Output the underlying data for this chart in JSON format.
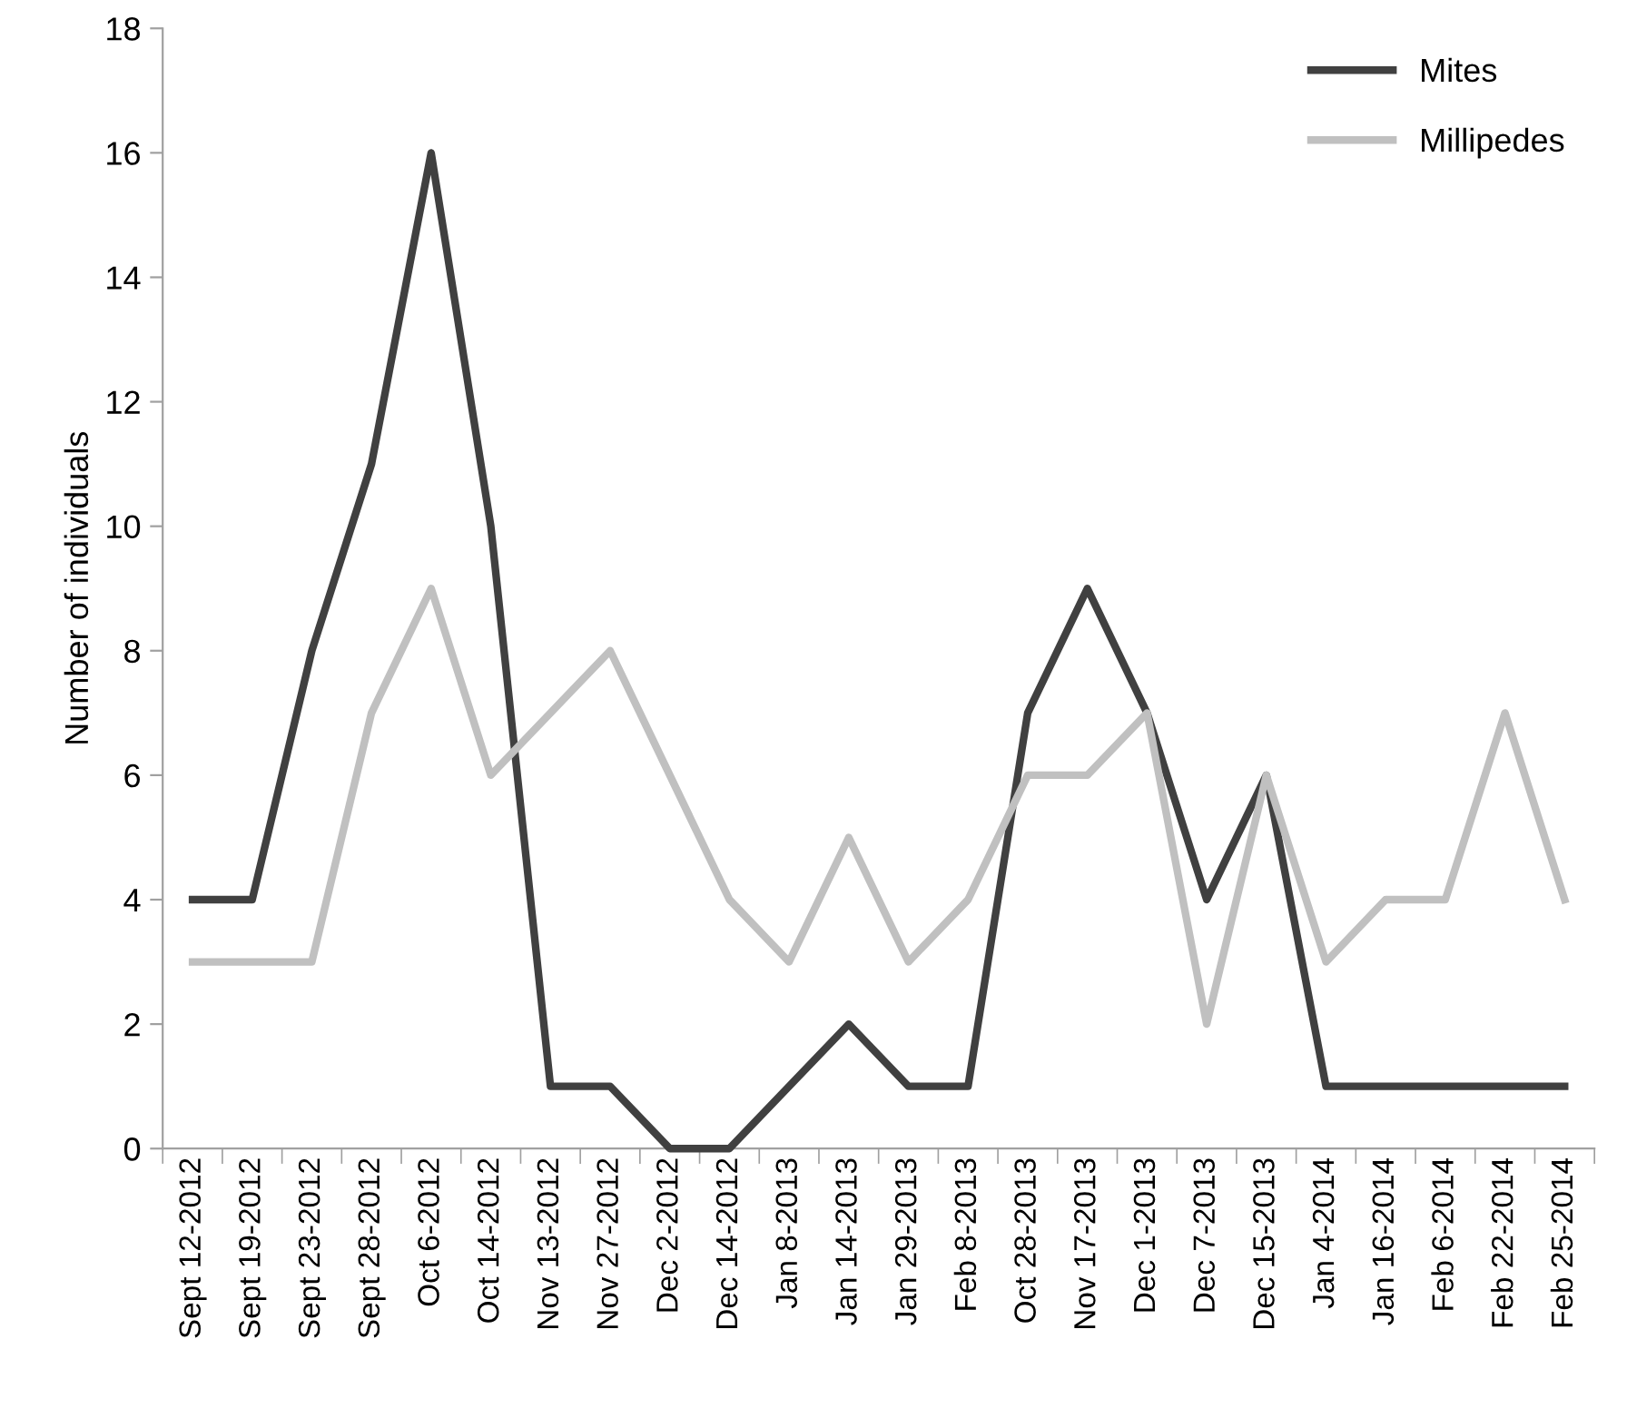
{
  "chart_data": {
    "type": "line",
    "ylabel": "Number of individuals",
    "categories": [
      "Sept 12-2012",
      "Sept 19-2012",
      "Sept 23-2012",
      "Sept 28-2012",
      "Oct 6-2012",
      "Oct 14-2012",
      "Nov 13-2012",
      "Nov 27-2012",
      "Dec 2-2012",
      "Dec 14-2012",
      "Jan 8-2013",
      "Jan 14-2013",
      "Jan 29-2013",
      "Feb 8-2013",
      "Oct 28-2013",
      "Nov 17-2013",
      "Dec 1-2013",
      "Dec 7-2013",
      "Dec 15-2013",
      "Jan 4-2014",
      "Jan 16-2014",
      "Feb 6-2014",
      "Feb 22-2014",
      "Feb 25-2014"
    ],
    "series": [
      {
        "name": "Mites",
        "color": "#404040",
        "values": [
          4,
          4,
          8,
          11,
          16,
          10,
          1,
          1,
          0,
          0,
          1,
          2,
          1,
          1,
          7,
          9,
          7,
          4,
          6,
          1,
          1,
          1,
          1,
          1
        ]
      },
      {
        "name": "Millipedes",
        "color": "#c0c0c0",
        "values": [
          3,
          3,
          3,
          7,
          9,
          6,
          7,
          8,
          6,
          4,
          3,
          5,
          3,
          4,
          6,
          6,
          7,
          2,
          6,
          3,
          4,
          4,
          7,
          4
        ]
      }
    ],
    "ylim": [
      0,
      18
    ],
    "yticks": [
      0,
      2,
      4,
      6,
      8,
      10,
      12,
      14,
      16,
      18
    ],
    "grid": false,
    "legend": "top right",
    "marker": "none",
    "line_style": "solid"
  }
}
